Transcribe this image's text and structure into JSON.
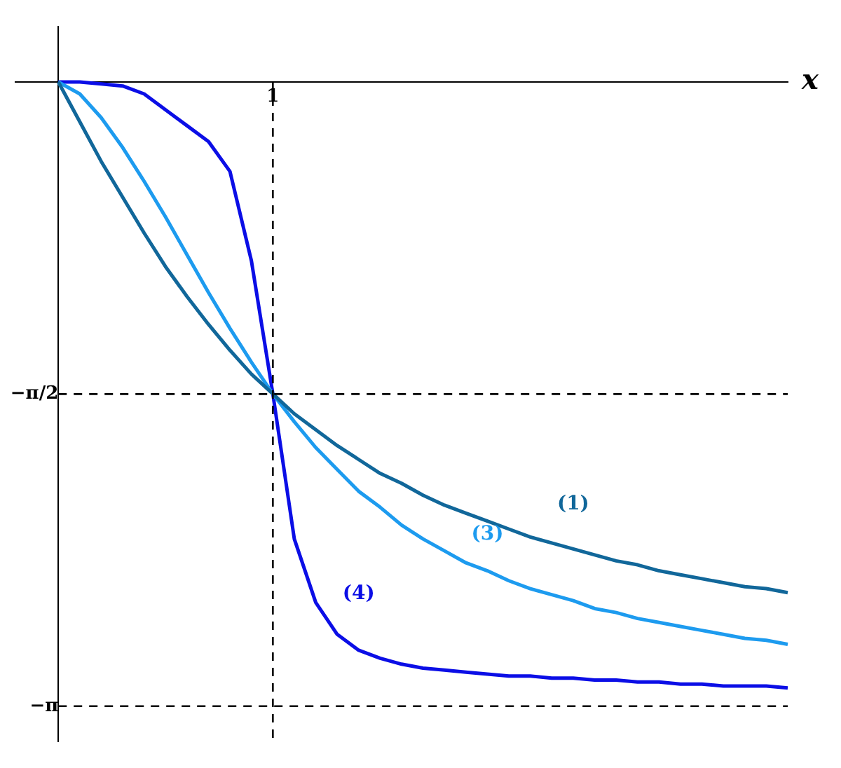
{
  "chart_data": {
    "type": "line",
    "xlabel": "x",
    "categories": [
      null,
      null,
      null,
      null,
      null,
      null,
      null,
      null,
      null,
      null,
      null,
      null,
      "1",
      null,
      null,
      null,
      null,
      null,
      null,
      null,
      null,
      null,
      null,
      null,
      null,
      null,
      null,
      null,
      null,
      null,
      null,
      null,
      null,
      null,
      null,
      null,
      null
    ],
    "ylim": [
      -3.32,
      0.28
    ],
    "yticks": [
      {
        "value": -1.5708,
        "label": "−π/2"
      },
      {
        "value": -3.1416,
        "label": "−π"
      }
    ],
    "grid": false,
    "legend": false,
    "marker": "none",
    "line_style": "solid",
    "series": [
      {
        "name": "(1)",
        "color": "#11679a",
        "values": [
          null,
          null,
          0,
          -0.2,
          -0.4,
          -0.58,
          -0.76,
          -0.93,
          -1.08,
          -1.22,
          -1.35,
          -1.47,
          -1.57,
          -1.67,
          -1.75,
          -1.83,
          -1.9,
          -1.97,
          -2.02,
          -2.08,
          -2.13,
          -2.17,
          -2.21,
          -2.25,
          -2.29,
          -2.32,
          -2.35,
          -2.38,
          -2.41,
          -2.43,
          -2.46,
          -2.48,
          -2.5,
          -2.52,
          -2.54,
          -2.55,
          -2.57
        ]
      },
      {
        "name": "(3)",
        "color": "#1d9bef",
        "values": [
          null,
          null,
          0,
          -0.06,
          -0.18,
          -0.33,
          -0.5,
          -0.68,
          -0.87,
          -1.06,
          -1.24,
          -1.41,
          -1.57,
          -1.71,
          -1.84,
          -1.95,
          -2.06,
          -2.14,
          -2.23,
          -2.3,
          -2.36,
          -2.42,
          -2.46,
          -2.51,
          -2.55,
          -2.58,
          -2.61,
          -2.65,
          -2.67,
          -2.7,
          -2.72,
          -2.74,
          -2.76,
          -2.78,
          -2.8,
          -2.81,
          -2.83
        ]
      },
      {
        "name": "(4)",
        "color": "#0b0ee6",
        "values": [
          null,
          null,
          0,
          0,
          -0.01,
          -0.02,
          -0.06,
          -0.14,
          -0.22,
          -0.3,
          -0.45,
          -0.9,
          -1.57,
          -2.3,
          -2.62,
          -2.78,
          -2.86,
          -2.9,
          -2.93,
          -2.95,
          -2.96,
          -2.97,
          -2.98,
          -2.99,
          -2.99,
          -3,
          -3,
          -3.01,
          -3.01,
          -3.02,
          -3.02,
          -3.03,
          -3.03,
          -3.04,
          -3.04,
          -3.04,
          -3.05
        ]
      }
    ],
    "ref_lines": [
      {
        "axis": "x",
        "value": "1",
        "line_style": "dashed"
      },
      {
        "axis": "y",
        "value": -1.5708,
        "line_style": "dashed"
      },
      {
        "axis": "y",
        "value": -3.1416,
        "line_style": "dashed"
      }
    ]
  }
}
